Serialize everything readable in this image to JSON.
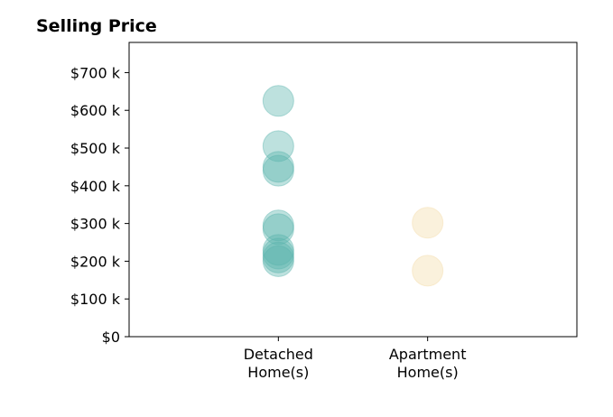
{
  "chart_data": {
    "type": "scatter",
    "title": "Selling Price",
    "xlabel": "",
    "ylabel": "",
    "categories": [
      [
        "Detached",
        "Home(s)"
      ],
      [
        "Apartment",
        "Home(s)"
      ]
    ],
    "xlim": [
      0,
      3
    ],
    "ylim": [
      0,
      780
    ],
    "y_ticks": [
      0,
      100,
      200,
      300,
      400,
      500,
      600,
      700
    ],
    "y_tick_labels": [
      "$0",
      "$100 k",
      "$200 k",
      "$300 k",
      "$400 k",
      "$500 k",
      "$600 k",
      "$700 k"
    ],
    "grid": false,
    "legend": "none",
    "series": [
      {
        "category_index": 0,
        "color": "#5ab4ac",
        "values": [
          625,
          505,
          450,
          440,
          295,
          285,
          230,
          220,
          210,
          200
        ]
      },
      {
        "category_index": 1,
        "color": "#f3dca8",
        "values": [
          302,
          175
        ]
      }
    ]
  }
}
